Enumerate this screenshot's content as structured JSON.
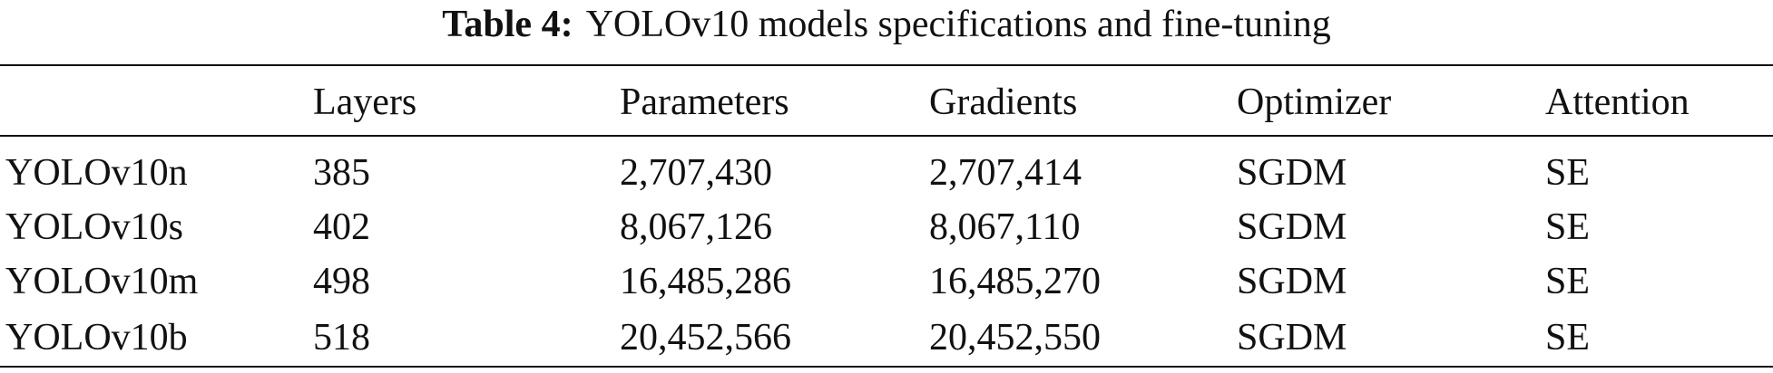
{
  "caption": {
    "label": "Table 4:",
    "title": "YOLOv10 models specifications and fine-tuning"
  },
  "table": {
    "columns": [
      "Layers",
      "Parameters",
      "Gradients",
      "Optimizer",
      "Attention"
    ],
    "rows": [
      [
        "YOLOv10n",
        "385",
        "2,707,430",
        "2,707,414",
        "SGDM",
        "SE"
      ],
      [
        "YOLOv10s",
        "402",
        "8,067,126",
        "8,067,110",
        "SGDM",
        "SE"
      ],
      [
        "YOLOv10m",
        "498",
        "16,485,286",
        "16,485,270",
        "SGDM",
        "SE"
      ],
      [
        "YOLOv10b",
        "518",
        "20,452,566",
        "20,452,550",
        "SGDM",
        "SE"
      ]
    ]
  }
}
